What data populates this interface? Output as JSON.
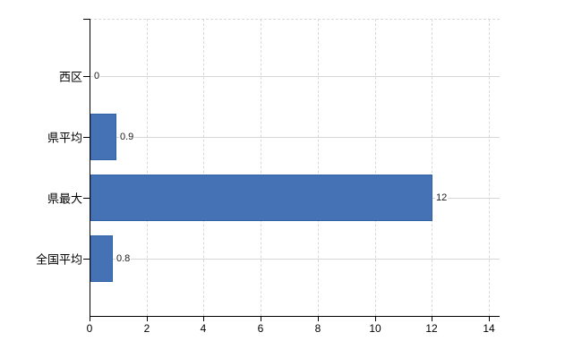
{
  "chart": {
    "background": "#ffffff",
    "bar_color": "#4472b5",
    "bar_edge_color": "#2f62a8",
    "axis_color": "#000000",
    "h_grid_color": "#d6d6d6",
    "v_grid_color": "#d9d9d9",
    "value_label_color": "#1a1a1a"
  },
  "chart_data": {
    "type": "bar",
    "orientation": "horizontal",
    "title": "",
    "categories": [
      "西区",
      "県平均",
      "県最大",
      "全国平均"
    ],
    "values": [
      0,
      0.9,
      12,
      0.8
    ],
    "value_labels": [
      "0",
      "0.9",
      "12",
      "0.8"
    ],
    "xlabel": "",
    "ylabel": "",
    "xlim": [
      0,
      14
    ],
    "xticks": [
      0,
      2,
      4,
      6,
      8,
      10,
      12,
      14
    ],
    "xtick_labels": [
      "0",
      "2",
      "4",
      "6",
      "8",
      "10",
      "12",
      "14"
    ],
    "grid": true,
    "legend": "none"
  }
}
